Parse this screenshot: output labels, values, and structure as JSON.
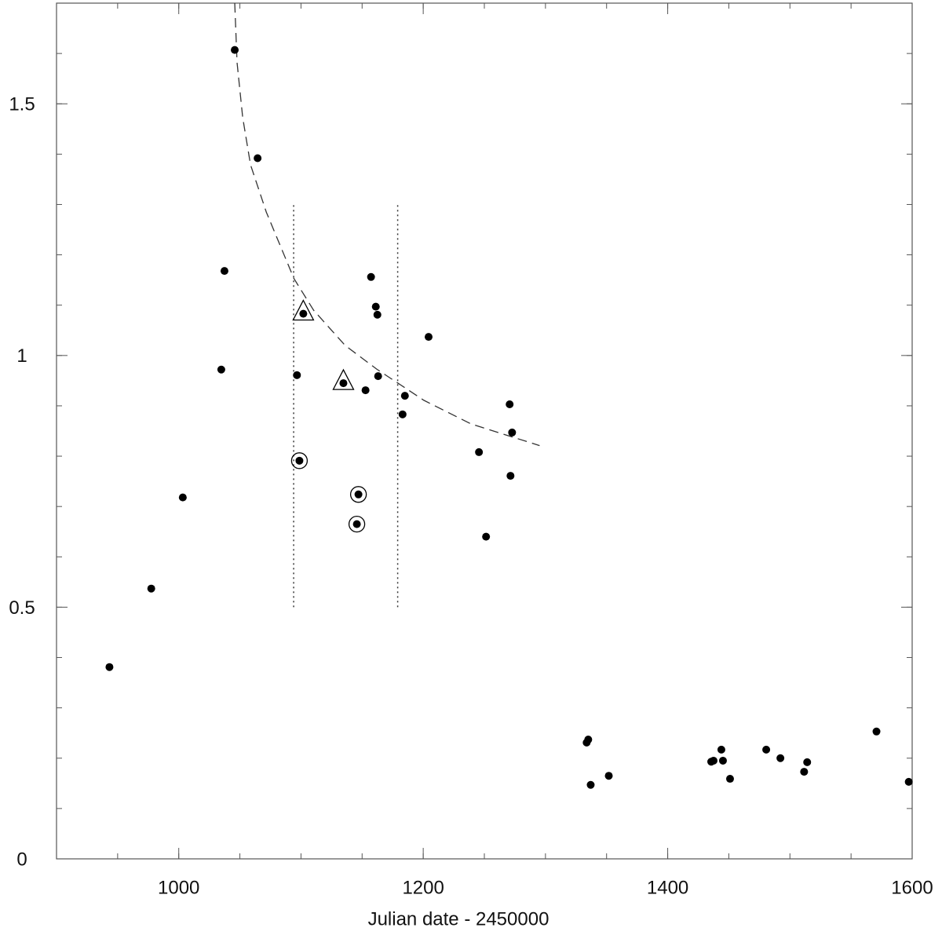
{
  "chart_data": {
    "type": "scatter",
    "xlabel": "Julian date - 2450000",
    "xlim": [
      900,
      1600
    ],
    "ylim": [
      0,
      1.7
    ],
    "xticks": [
      1000,
      1200,
      1400,
      1600
    ],
    "yticks": [
      0,
      0.5,
      1,
      1.5
    ],
    "xminor_ticks": [
      900,
      950,
      1000,
      1050,
      1100,
      1150,
      1200,
      1250,
      1300,
      1350,
      1400,
      1450,
      1500,
      1550,
      1600
    ],
    "yminor_ticks": [
      0,
      0.1,
      0.2,
      0.3,
      0.4,
      0.5,
      0.6,
      0.7,
      0.8,
      0.9,
      1,
      1.1,
      1.2,
      1.3,
      1.4,
      1.5,
      1.6
    ],
    "color": "#000000",
    "series": [
      {
        "marker": "dot",
        "x": [
          943.3,
          977.5,
          1003.3,
          1034.8,
          1037.4,
          1045.8,
          1064.5,
          1096.7,
          1152.8,
          1157.3,
          1161.2,
          1162.5,
          1163.1,
          1185.0,
          1183.1,
          1204.4,
          1245.6,
          1251.4,
          1270.7,
          1272.7,
          1271.4,
          1333.7,
          1335.0,
          1337.0,
          1351.8,
          1435.6,
          1437.5,
          1443.9,
          1445.2,
          1451.0,
          1480.6,
          1492.2,
          1511.6,
          1514.1,
          1570.8,
          1597.2
        ],
        "y": [
          0.381,
          0.537,
          0.718,
          0.972,
          1.168,
          1.607,
          1.392,
          0.961,
          0.931,
          1.156,
          1.097,
          1.081,
          0.959,
          0.92,
          0.883,
          1.037,
          0.808,
          0.64,
          0.903,
          0.847,
          0.761,
          0.231,
          0.237,
          0.147,
          0.165,
          0.193,
          0.195,
          0.217,
          0.195,
          0.159,
          0.217,
          0.2,
          0.173,
          0.192,
          0.253,
          0.153
        ]
      },
      {
        "marker": "circled",
        "x": [
          1098.7,
          1147.0,
          1145.7
        ],
        "y": [
          0.791,
          0.724,
          0.665
        ]
      },
      {
        "marker": "triangled",
        "x": [
          1101.9,
          1134.7
        ],
        "y": [
          1.083,
          0.945
        ]
      }
    ],
    "curve": {
      "x": [
        1045.8,
        1047.7,
        1052.3,
        1058.7,
        1071.6,
        1094.2,
        1110.3,
        1136.1,
        1161.9,
        1200.5,
        1239.2,
        1295.2
      ],
      "y": [
        1.7,
        1.582,
        1.473,
        1.379,
        1.285,
        1.153,
        1.09,
        1.02,
        0.973,
        0.911,
        0.864,
        0.821
      ]
    },
    "vlines": [
      {
        "x": 1094.0,
        "y": [
          0.5,
          1.3
        ]
      },
      {
        "x": 1179.1,
        "y": [
          0.5,
          1.3
        ]
      }
    ]
  }
}
